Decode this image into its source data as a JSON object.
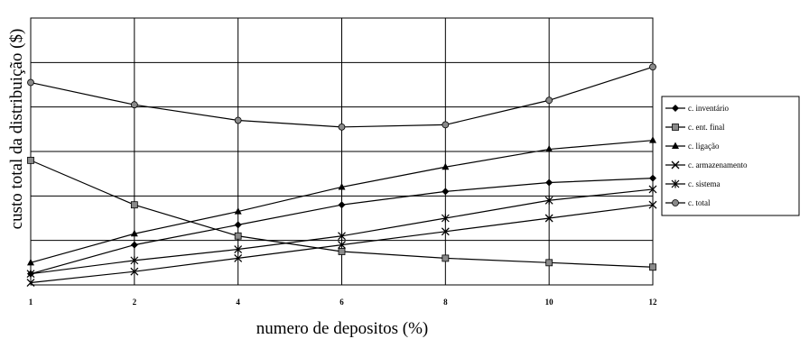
{
  "chart_data": {
    "type": "line",
    "title": "",
    "xlabel": "numero de depositos (%)",
    "ylabel": "custo total da distribuição ($)",
    "x": [
      1,
      2,
      4,
      6,
      8,
      10,
      12
    ],
    "x_tick_labels": [
      "1",
      "2",
      "4",
      "6",
      "8",
      "10",
      "12"
    ],
    "ylim": [
      0,
      6
    ],
    "y_tick_labels_shown": false,
    "grid": true,
    "legend_position": "right",
    "series": [
      {
        "name": "c. inventário",
        "marker": "diamond",
        "values": [
          0.25,
          0.9,
          1.35,
          1.8,
          2.1,
          2.3,
          2.4
        ]
      },
      {
        "name": "c. ent. final",
        "marker": "square",
        "values": [
          2.8,
          1.8,
          1.1,
          0.75,
          0.6,
          0.5,
          0.4
        ]
      },
      {
        "name": "c. ligação",
        "marker": "triangle",
        "values": [
          0.5,
          1.15,
          1.65,
          2.2,
          2.65,
          3.05,
          3.25
        ]
      },
      {
        "name": "c. armazenamento",
        "marker": "x",
        "values": [
          0.05,
          0.3,
          0.6,
          0.9,
          1.2,
          1.5,
          1.8
        ]
      },
      {
        "name": "c. sistema",
        "marker": "asterisk",
        "values": [
          0.25,
          0.55,
          0.8,
          1.1,
          1.5,
          1.9,
          2.15
        ]
      },
      {
        "name": "c. total",
        "marker": "circle",
        "values": [
          4.55,
          4.05,
          3.7,
          3.55,
          3.6,
          4.15,
          4.9
        ]
      }
    ]
  }
}
